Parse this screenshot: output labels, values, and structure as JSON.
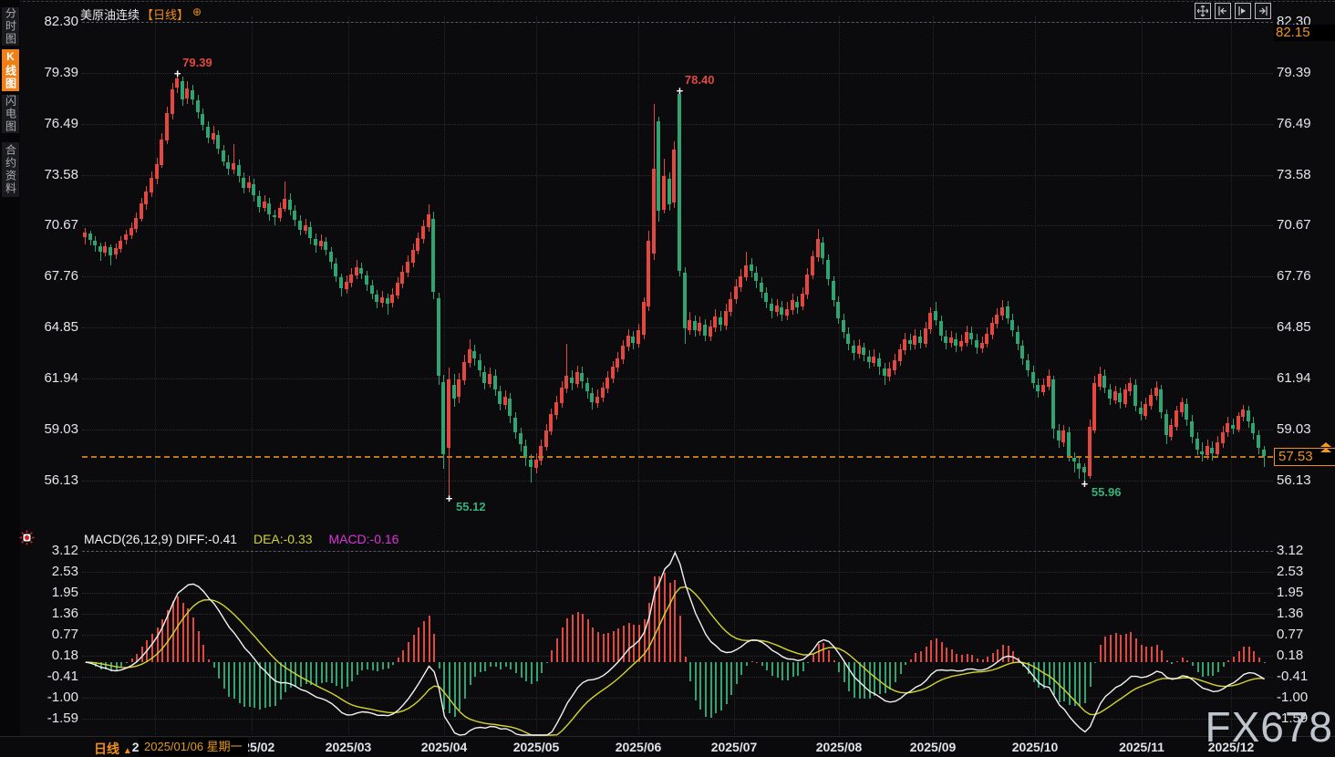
{
  "app": {
    "title_symbol": "美原油连续",
    "title_period": "【日线】",
    "watermark": "FX678"
  },
  "sidebar": {
    "tabs": [
      {
        "label": "分时图",
        "active": false
      },
      {
        "label": "K线图",
        "active": true
      },
      {
        "label": "闪电图",
        "active": false
      },
      {
        "label": "合约资料",
        "active": false
      }
    ]
  },
  "toolbar": {
    "icons": [
      "pan-icon",
      "scroll-to-start-icon",
      "scroll-right-icon",
      "scroll-to-end-icon"
    ]
  },
  "status_bar": {
    "period_label": "日线",
    "tooltip": "2025/01/06 星期一"
  },
  "chart_data": {
    "type": "candlestick-with-macd",
    "title": "美原油连续 日线",
    "price_axis_labels": [
      82.3,
      79.39,
      76.49,
      73.58,
      70.67,
      67.76,
      64.85,
      61.94,
      59.03,
      56.13
    ],
    "axis_extra_top": "82.15",
    "last_price": 57.53,
    "x_labels": [
      "2025/01",
      "2025/02",
      "2025/03",
      "2025/04",
      "2025/05",
      "2025/06",
      "2025/07",
      "2025/08",
      "2025/09",
      "2025/10",
      "2025/11",
      "2025/12"
    ],
    "markers": [
      {
        "text": "79.39",
        "index": 18,
        "side": "high",
        "color": "red"
      },
      {
        "text": "78.40",
        "index": 116,
        "side": "high",
        "color": "red"
      },
      {
        "text": "55.12",
        "index": 71,
        "side": "low",
        "color": "green"
      },
      {
        "text": "55.96",
        "index": 195,
        "side": "low",
        "color": "green"
      }
    ],
    "colors": {
      "up": "#e24840",
      "down": "#2fa471",
      "accent_orange": "#ef8e1c",
      "diff_line": "#f2f2f2",
      "dea_line": "#d4d42a",
      "macd_text": "#dd33dd"
    },
    "candles": [
      [
        70.0,
        70.55,
        69.6,
        70.25
      ],
      [
        70.2,
        70.4,
        69.55,
        69.85
      ],
      [
        69.8,
        70.05,
        69.2,
        69.55
      ],
      [
        69.5,
        69.7,
        68.65,
        69.2
      ],
      [
        69.15,
        69.75,
        68.9,
        69.5
      ],
      [
        69.45,
        69.6,
        68.4,
        68.95
      ],
      [
        69.0,
        69.65,
        68.75,
        69.4
      ],
      [
        69.35,
        70.05,
        69.15,
        69.8
      ],
      [
        69.85,
        70.45,
        69.6,
        70.15
      ],
      [
        70.1,
        70.85,
        69.9,
        70.55
      ],
      [
        70.5,
        71.4,
        70.3,
        71.1
      ],
      [
        71.05,
        72.25,
        70.9,
        71.95
      ],
      [
        71.9,
        72.95,
        71.6,
        72.6
      ],
      [
        72.55,
        73.75,
        72.3,
        73.4
      ],
      [
        73.35,
        74.55,
        73.05,
        74.2
      ],
      [
        74.15,
        75.95,
        73.95,
        75.6
      ],
      [
        75.55,
        77.45,
        75.3,
        77.1
      ],
      [
        77.05,
        78.8,
        76.75,
        78.45
      ],
      [
        78.55,
        79.39,
        78.25,
        79.05
      ],
      [
        78.9,
        79.2,
        77.5,
        77.85
      ],
      [
        77.95,
        78.9,
        77.6,
        78.5
      ],
      [
        78.4,
        78.7,
        77.55,
        77.9
      ],
      [
        77.8,
        78.15,
        76.8,
        77.15
      ],
      [
        77.05,
        77.35,
        76.1,
        76.4
      ],
      [
        76.3,
        76.65,
        75.4,
        75.7
      ],
      [
        75.6,
        76.35,
        75.3,
        75.95
      ],
      [
        75.85,
        76.1,
        74.75,
        75.05
      ],
      [
        74.95,
        75.25,
        74.05,
        74.35
      ],
      [
        74.3,
        74.7,
        73.55,
        73.9
      ],
      [
        73.85,
        75.3,
        73.6,
        74.25
      ],
      [
        74.15,
        74.45,
        73.15,
        73.5
      ],
      [
        73.4,
        73.7,
        72.5,
        72.85
      ],
      [
        72.8,
        73.5,
        72.55,
        73.15
      ],
      [
        73.05,
        73.35,
        72.05,
        72.4
      ],
      [
        72.35,
        72.65,
        71.4,
        71.75
      ],
      [
        71.7,
        72.4,
        71.45,
        72.05
      ],
      [
        71.95,
        72.25,
        70.95,
        71.3
      ],
      [
        71.25,
        71.6,
        70.7,
        71.15
      ],
      [
        71.1,
        72.0,
        70.9,
        71.7
      ],
      [
        71.65,
        73.2,
        71.45,
        72.2
      ],
      [
        72.15,
        72.5,
        71.25,
        71.6
      ],
      [
        71.5,
        71.85,
        70.65,
        71.0
      ],
      [
        70.95,
        71.25,
        70.1,
        70.45
      ],
      [
        70.4,
        71.05,
        70.15,
        70.7
      ],
      [
        70.6,
        70.9,
        69.6,
        69.95
      ],
      [
        69.9,
        70.2,
        69.15,
        69.55
      ],
      [
        69.5,
        70.15,
        69.3,
        69.8
      ],
      [
        69.75,
        70.0,
        68.95,
        69.3
      ],
      [
        69.2,
        69.45,
        68.2,
        68.6
      ],
      [
        68.5,
        68.8,
        67.45,
        67.8
      ],
      [
        67.7,
        67.95,
        66.65,
        67.1
      ],
      [
        67.05,
        67.85,
        66.8,
        67.45
      ],
      [
        67.4,
        68.25,
        67.15,
        67.9
      ],
      [
        67.85,
        68.7,
        67.6,
        68.3
      ],
      [
        68.25,
        68.55,
        67.6,
        67.95
      ],
      [
        67.85,
        68.1,
        66.95,
        67.3
      ],
      [
        67.25,
        67.55,
        66.45,
        66.8
      ],
      [
        66.75,
        67.0,
        65.95,
        66.3
      ],
      [
        66.25,
        66.95,
        66.0,
        66.6
      ],
      [
        66.55,
        66.8,
        65.58,
        66.2
      ],
      [
        66.25,
        67.1,
        66.0,
        66.75
      ],
      [
        66.7,
        67.75,
        66.45,
        67.4
      ],
      [
        67.35,
        68.4,
        67.1,
        68.05
      ],
      [
        68.0,
        68.95,
        67.75,
        68.6
      ],
      [
        68.55,
        69.65,
        68.3,
        69.3
      ],
      [
        69.25,
        70.3,
        69.0,
        69.95
      ],
      [
        69.9,
        71.0,
        69.65,
        70.65
      ],
      [
        70.6,
        71.9,
        70.35,
        71.3
      ],
      [
        71.05,
        71.45,
        66.45,
        66.9
      ],
      [
        66.55,
        66.85,
        61.6,
        62.1
      ],
      [
        61.75,
        62.15,
        56.8,
        57.6
      ],
      [
        58.0,
        62.55,
        55.12,
        61.9
      ],
      [
        61.6,
        62.2,
        60.35,
        60.8
      ],
      [
        60.9,
        62.25,
        60.55,
        61.9
      ],
      [
        61.85,
        63.3,
        61.6,
        62.9
      ],
      [
        62.85,
        64.2,
        62.55,
        63.6
      ],
      [
        63.5,
        63.85,
        62.7,
        63.1
      ],
      [
        63.0,
        63.35,
        62.05,
        62.4
      ],
      [
        62.3,
        62.65,
        61.3,
        61.7
      ],
      [
        61.65,
        62.55,
        61.4,
        62.2
      ],
      [
        62.1,
        62.45,
        60.95,
        61.3
      ],
      [
        61.2,
        61.55,
        60.1,
        60.5
      ],
      [
        60.45,
        61.25,
        60.2,
        60.9
      ],
      [
        60.8,
        61.1,
        59.4,
        59.8
      ],
      [
        59.7,
        60.0,
        58.5,
        58.9
      ],
      [
        58.8,
        59.15,
        57.8,
        58.2
      ],
      [
        58.1,
        58.45,
        56.95,
        57.4
      ],
      [
        57.3,
        57.65,
        56.0,
        56.9
      ],
      [
        56.85,
        57.7,
        56.55,
        57.3
      ],
      [
        57.25,
        58.45,
        57.0,
        58.1
      ],
      [
        58.05,
        59.35,
        57.85,
        59.0
      ],
      [
        58.95,
        60.25,
        58.7,
        59.9
      ],
      [
        59.85,
        60.95,
        59.6,
        60.6
      ],
      [
        60.55,
        61.8,
        60.3,
        61.4
      ],
      [
        61.35,
        63.9,
        61.1,
        62.1
      ],
      [
        62.0,
        62.4,
        61.25,
        61.7
      ],
      [
        61.65,
        62.7,
        61.4,
        62.3
      ],
      [
        62.25,
        62.6,
        61.35,
        61.8
      ],
      [
        61.7,
        62.0,
        60.8,
        61.2
      ],
      [
        61.1,
        61.45,
        60.15,
        60.6
      ],
      [
        60.55,
        61.3,
        60.3,
        60.9
      ],
      [
        60.85,
        61.75,
        60.6,
        61.4
      ],
      [
        61.35,
        62.35,
        61.1,
        62.0
      ],
      [
        61.95,
        62.95,
        61.7,
        62.6
      ],
      [
        62.55,
        63.45,
        62.3,
        63.1
      ],
      [
        63.05,
        64.15,
        62.8,
        63.8
      ],
      [
        63.75,
        64.75,
        63.5,
        64.4
      ],
      [
        64.35,
        64.65,
        63.6,
        64.0
      ],
      [
        63.95,
        65.05,
        63.7,
        64.7
      ],
      [
        64.45,
        66.6,
        64.2,
        66.3
      ],
      [
        66.05,
        70.4,
        65.8,
        69.8
      ],
      [
        69.1,
        77.6,
        68.7,
        73.9
      ],
      [
        76.6,
        76.9,
        70.9,
        71.5
      ],
      [
        71.6,
        74.5,
        71.35,
        73.5
      ],
      [
        73.35,
        73.7,
        71.55,
        71.9
      ],
      [
        72.0,
        75.5,
        71.7,
        75.0
      ],
      [
        78.2,
        78.4,
        67.8,
        68.1
      ],
      [
        68.0,
        68.3,
        63.9,
        64.8
      ],
      [
        64.7,
        65.75,
        64.45,
        65.3
      ],
      [
        65.2,
        65.55,
        64.35,
        64.7
      ],
      [
        64.65,
        65.5,
        64.4,
        65.1
      ],
      [
        65.0,
        65.35,
        64.1,
        64.4
      ],
      [
        64.35,
        65.3,
        64.1,
        64.9
      ],
      [
        64.85,
        65.9,
        64.6,
        65.5
      ],
      [
        65.45,
        65.8,
        64.65,
        65.0
      ],
      [
        64.95,
        66.2,
        64.7,
        65.8
      ],
      [
        65.75,
        66.9,
        65.5,
        66.5
      ],
      [
        66.45,
        67.6,
        66.2,
        67.2
      ],
      [
        67.15,
        68.2,
        66.9,
        67.8
      ],
      [
        67.75,
        69.2,
        67.5,
        68.4
      ],
      [
        68.45,
        68.8,
        67.7,
        68.1
      ],
      [
        68.0,
        68.35,
        67.1,
        67.5
      ],
      [
        67.4,
        67.75,
        66.55,
        66.9
      ],
      [
        66.85,
        67.15,
        65.95,
        66.3
      ],
      [
        66.2,
        66.55,
        65.4,
        65.8
      ],
      [
        65.75,
        66.5,
        65.5,
        66.1
      ],
      [
        66.0,
        66.35,
        65.2,
        65.6
      ],
      [
        65.55,
        66.3,
        65.3,
        65.9
      ],
      [
        65.85,
        66.8,
        65.6,
        66.4
      ],
      [
        66.3,
        66.65,
        65.65,
        66.0
      ],
      [
        66.05,
        67.15,
        65.85,
        66.8
      ],
      [
        66.75,
        68.25,
        66.5,
        67.9
      ],
      [
        67.85,
        69.25,
        67.6,
        68.9
      ],
      [
        68.85,
        70.5,
        68.6,
        69.9
      ],
      [
        69.7,
        70.0,
        68.45,
        68.8
      ],
      [
        68.7,
        69.0,
        67.25,
        67.6
      ],
      [
        67.5,
        67.8,
        66.05,
        66.4
      ],
      [
        66.3,
        66.65,
        65.05,
        65.4
      ],
      [
        65.3,
        65.65,
        64.25,
        64.6
      ],
      [
        64.5,
        64.85,
        63.55,
        63.9
      ],
      [
        63.8,
        64.15,
        63.0,
        63.4
      ],
      [
        63.35,
        64.2,
        63.1,
        63.8
      ],
      [
        63.7,
        64.0,
        62.95,
        63.3
      ],
      [
        63.2,
        63.55,
        62.5,
        62.9
      ],
      [
        62.85,
        63.6,
        62.6,
        63.2
      ],
      [
        63.1,
        63.4,
        62.15,
        62.6
      ],
      [
        62.5,
        62.85,
        61.6,
        62.1
      ],
      [
        62.05,
        62.9,
        61.8,
        62.5
      ],
      [
        62.4,
        63.35,
        62.15,
        63.0
      ],
      [
        62.95,
        63.95,
        62.7,
        63.6
      ],
      [
        63.55,
        64.55,
        63.3,
        64.2
      ],
      [
        64.15,
        64.5,
        63.55,
        63.9
      ],
      [
        63.85,
        64.75,
        63.6,
        64.4
      ],
      [
        64.35,
        64.7,
        63.65,
        64.0
      ],
      [
        63.95,
        65.15,
        63.7,
        64.8
      ],
      [
        64.75,
        66.0,
        64.5,
        65.7
      ],
      [
        65.8,
        66.3,
        64.95,
        65.3
      ],
      [
        65.2,
        65.55,
        64.1,
        64.4
      ],
      [
        64.35,
        64.7,
        63.6,
        64.0
      ],
      [
        63.95,
        64.65,
        63.7,
        64.3
      ],
      [
        64.2,
        64.55,
        63.45,
        63.8
      ],
      [
        63.75,
        64.45,
        63.5,
        64.1
      ],
      [
        64.0,
        64.95,
        63.75,
        64.6
      ],
      [
        64.55,
        64.9,
        63.85,
        64.2
      ],
      [
        64.15,
        64.5,
        63.35,
        63.7
      ],
      [
        63.65,
        64.35,
        63.4,
        64.0
      ],
      [
        63.95,
        64.85,
        63.7,
        64.5
      ],
      [
        64.45,
        65.45,
        64.2,
        65.1
      ],
      [
        65.05,
        65.95,
        64.8,
        65.6
      ],
      [
        65.55,
        66.4,
        65.3,
        66.0
      ],
      [
        66.05,
        66.35,
        65.05,
        65.4
      ],
      [
        65.3,
        65.65,
        64.35,
        64.7
      ],
      [
        64.6,
        64.95,
        63.55,
        63.9
      ],
      [
        63.8,
        64.15,
        62.75,
        63.1
      ],
      [
        63.0,
        63.35,
        62.05,
        62.4
      ],
      [
        62.3,
        62.65,
        61.35,
        61.7
      ],
      [
        61.6,
        61.95,
        60.85,
        61.2
      ],
      [
        61.15,
        61.95,
        60.95,
        61.6
      ],
      [
        61.5,
        62.45,
        61.25,
        62.1
      ],
      [
        61.9,
        62.1,
        58.5,
        59.1
      ],
      [
        59.0,
        59.35,
        58.0,
        58.4
      ],
      [
        58.3,
        59.3,
        58.05,
        59.0
      ],
      [
        58.9,
        59.2,
        57.2,
        57.5
      ],
      [
        57.4,
        57.75,
        56.6,
        57.2
      ],
      [
        57.1,
        57.45,
        56.2,
        56.8
      ],
      [
        56.9,
        57.1,
        55.96,
        56.6
      ],
      [
        56.4,
        59.6,
        56.2,
        59.2
      ],
      [
        59.0,
        62.1,
        58.8,
        61.7
      ],
      [
        61.5,
        62.6,
        61.25,
        62.2
      ],
      [
        62.1,
        62.45,
        61.1,
        61.4
      ],
      [
        61.3,
        61.65,
        60.45,
        60.8
      ],
      [
        60.7,
        61.55,
        60.5,
        61.2
      ],
      [
        61.1,
        61.45,
        60.25,
        60.6
      ],
      [
        60.5,
        61.65,
        60.3,
        61.3
      ],
      [
        61.2,
        62.0,
        60.95,
        61.7
      ],
      [
        61.6,
        61.9,
        60.05,
        60.4
      ],
      [
        60.3,
        60.65,
        59.55,
        59.9
      ],
      [
        59.8,
        60.85,
        59.6,
        60.5
      ],
      [
        60.4,
        61.35,
        60.2,
        61.0
      ],
      [
        60.95,
        61.8,
        60.7,
        61.4
      ],
      [
        61.3,
        61.6,
        59.65,
        60.0
      ],
      [
        59.9,
        60.2,
        58.2,
        58.7
      ],
      [
        58.6,
        59.65,
        58.4,
        59.3
      ],
      [
        59.2,
        60.4,
        59.0,
        60.1
      ],
      [
        60.0,
        60.85,
        59.75,
        60.6
      ],
      [
        60.5,
        60.8,
        59.25,
        59.6
      ],
      [
        59.5,
        59.85,
        58.25,
        58.6
      ],
      [
        58.5,
        58.85,
        57.55,
        57.9
      ],
      [
        57.8,
        58.3,
        57.2,
        57.6
      ],
      [
        57.55,
        58.45,
        57.3,
        58.1
      ],
      [
        58.0,
        58.35,
        57.25,
        57.7
      ],
      [
        57.65,
        58.65,
        57.4,
        58.3
      ],
      [
        58.25,
        59.25,
        58.0,
        58.9
      ],
      [
        58.85,
        59.75,
        58.6,
        59.4
      ],
      [
        59.3,
        59.65,
        58.75,
        59.1
      ],
      [
        59.05,
        60.0,
        58.85,
        59.8
      ],
      [
        59.75,
        60.45,
        59.5,
        60.2
      ],
      [
        60.1,
        60.4,
        59.15,
        59.5
      ],
      [
        59.4,
        59.75,
        58.45,
        58.8
      ],
      [
        58.7,
        59.0,
        57.65,
        58.0
      ],
      [
        57.9,
        58.1,
        56.9,
        57.53
      ]
    ],
    "macd": {
      "params": [
        26,
        12,
        9
      ],
      "header_left": "MACD(26,12,9) DIFF:-0.41",
      "dea_text": "DEA:-0.33",
      "macd_text": "MACD:-0.16",
      "axis_labels": [
        3.12,
        2.53,
        1.95,
        1.36,
        0.77,
        0.18,
        -0.41,
        -1.0,
        -1.59
      ]
    }
  }
}
